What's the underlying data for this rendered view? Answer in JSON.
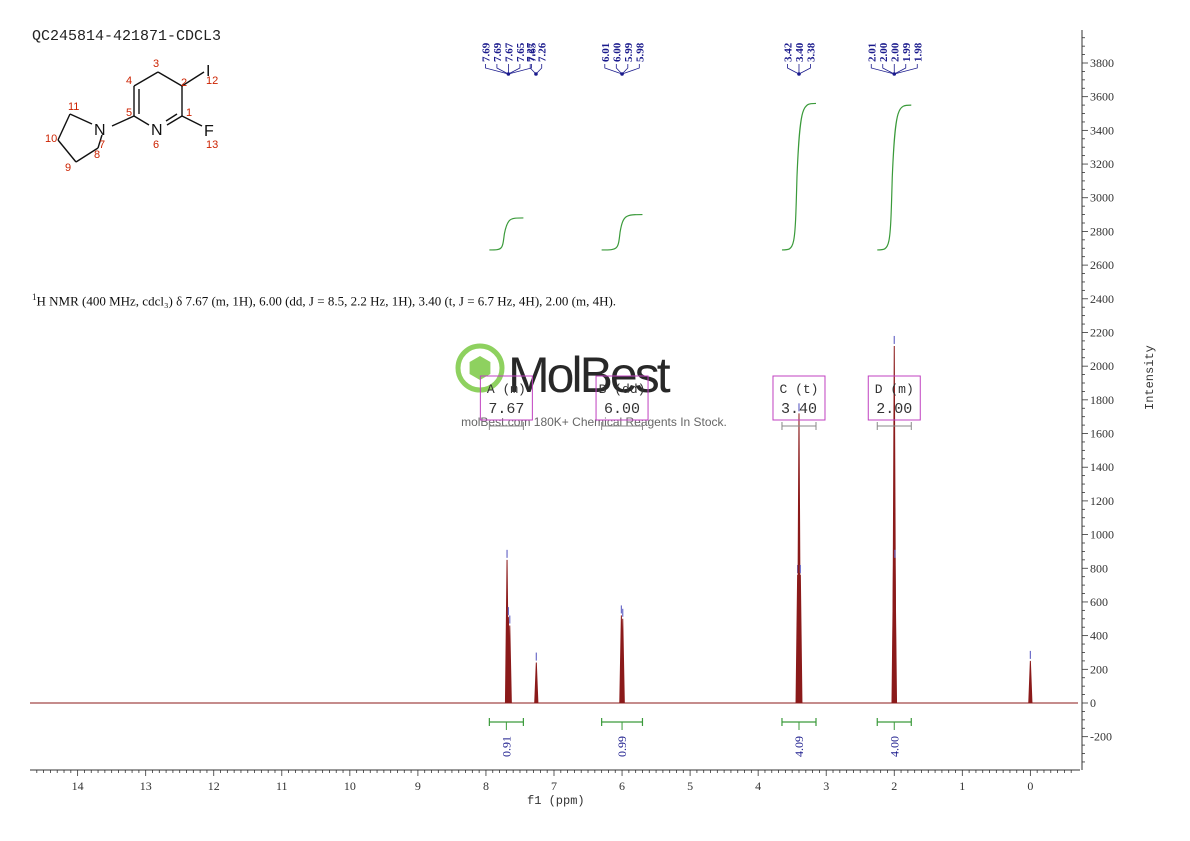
{
  "sample_id": "QC245814-421871-CDCL3",
  "nmr_summary": {
    "nucleus_sup": "1",
    "text": "H NMR (400 MHz, cdcl₃) δ 7.67 (m, 1H), 6.00 (dd, J = 8.5, 2.2 Hz, 1H), 3.40 (t, J = 6.7 Hz, 4H), 2.00 (m, 4H)."
  },
  "watermark": {
    "brand": "MolBest",
    "tagline": "molBest.com 180K+ Chemical Reagents In Stock."
  },
  "structure": {
    "atom_labels": [
      "1",
      "2",
      "3",
      "4",
      "5",
      "6",
      "7",
      "8",
      "9",
      "10",
      "11",
      "12",
      "13"
    ],
    "element_labels": [
      "N",
      "N",
      "I",
      "F"
    ]
  },
  "chart_data": {
    "type": "line",
    "title": "",
    "xlabel": "f1 (ppm)",
    "ylabel": "Intensity",
    "xlim": [
      14.7,
      -0.7
    ],
    "ylim": [
      -400,
      4000
    ],
    "x_ticks": [
      14,
      13,
      12,
      11,
      10,
      9,
      8,
      7,
      6,
      5,
      4,
      3,
      2,
      1,
      0
    ],
    "y_ticks": [
      -200,
      0,
      200,
      400,
      600,
      800,
      1000,
      1200,
      1400,
      1600,
      1800,
      2000,
      2200,
      2400,
      2600,
      2800,
      3000,
      3200,
      3400,
      3600,
      3800
    ],
    "spectrum_color": "#8b1a1a",
    "integral_color": "#3a9a3a",
    "label_color": "#1a1a8c",
    "multiplet_color": "#c040c0",
    "peaks": [
      {
        "ppm": 7.69,
        "height": 850
      },
      {
        "ppm": 7.67,
        "height": 510
      },
      {
        "ppm": 7.65,
        "height": 460
      },
      {
        "ppm": 7.26,
        "height": 240
      },
      {
        "ppm": 6.01,
        "height": 520
      },
      {
        "ppm": 5.99,
        "height": 500
      },
      {
        "ppm": 3.42,
        "height": 760
      },
      {
        "ppm": 3.4,
        "height": 1720
      },
      {
        "ppm": 3.38,
        "height": 760
      },
      {
        "ppm": 2.01,
        "height": 860
      },
      {
        "ppm": 2.0,
        "height": 2120
      },
      {
        "ppm": 1.99,
        "height": 850
      },
      {
        "ppm": 0.0,
        "height": 250
      }
    ],
    "peak_label_groups": [
      {
        "labels": [
          "7.69",
          "7.69",
          "7.67",
          "7.65",
          "7.65"
        ],
        "center": 7.67
      },
      {
        "labels": [
          "7.27",
          "7.26"
        ],
        "center": 7.265
      },
      {
        "labels": [
          "6.01",
          "6.00",
          "5.99",
          "5.98"
        ],
        "center": 6.0
      },
      {
        "labels": [
          "3.42",
          "3.40",
          "3.38"
        ],
        "center": 3.4
      },
      {
        "labels": [
          "2.01",
          "2.00",
          "2.00",
          "1.99",
          "1.98"
        ],
        "center": 2.0
      }
    ],
    "integrals": [
      {
        "from": 7.95,
        "to": 7.45,
        "value": "0.91",
        "start_level": 2690,
        "end_level": 2880
      },
      {
        "from": 6.3,
        "to": 5.7,
        "value": "0.99",
        "start_level": 2690,
        "end_level": 2900
      },
      {
        "from": 3.65,
        "to": 3.15,
        "value": "4.09",
        "start_level": 2690,
        "end_level": 3560
      },
      {
        "from": 2.25,
        "to": 1.75,
        "value": "4.00",
        "start_level": 2690,
        "end_level": 3550
      }
    ],
    "multiplets": [
      {
        "id": "A",
        "mult": "m",
        "shift": "7.67",
        "from": 7.95,
        "to": 7.45
      },
      {
        "id": "B",
        "mult": "dd",
        "shift": "6.00",
        "from": 6.3,
        "to": 5.7
      },
      {
        "id": "C",
        "mult": "t",
        "shift": "3.40",
        "from": 3.65,
        "to": 3.15
      },
      {
        "id": "D",
        "mult": "m",
        "shift": "2.00",
        "from": 2.25,
        "to": 1.75
      }
    ]
  }
}
